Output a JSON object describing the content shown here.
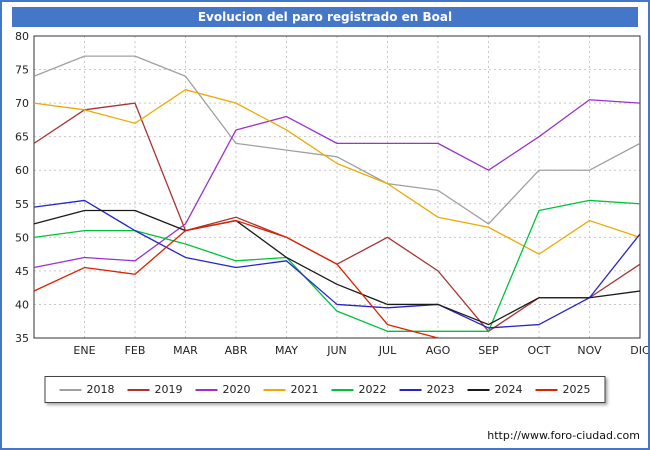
{
  "title": "Evolucion del paro registrado en Boal",
  "footer": {
    "url": "http://www.foro-ciudad.com"
  },
  "colors": {
    "frame": "#4577c8",
    "titlebar_bg": "#4577c8",
    "titlebar_text": "#ffffff",
    "grid": "#c8c8c8",
    "axis": "#333333"
  },
  "chart_data": {
    "type": "line",
    "title": "Evolucion del paro registrado en Boal",
    "x_labels": [
      "ENE",
      "FEB",
      "MAR",
      "ABR",
      "MAY",
      "JUN",
      "JUL",
      "AGO",
      "SEP",
      "OCT",
      "NOV",
      "DIC"
    ],
    "ylim": [
      35,
      80
    ],
    "ytick_step": 5,
    "grid": true,
    "legend_position": "bottom",
    "note_first_point": "each series starts at the left plot edge before the ENE column",
    "series": [
      {
        "name": "2018",
        "color": "#a0a0a0",
        "values": [
          74,
          77,
          77,
          74,
          64,
          63,
          62,
          58,
          57,
          52,
          60,
          60,
          64
        ]
      },
      {
        "name": "2019",
        "color": "#aa3333",
        "values": [
          64,
          69,
          70,
          51,
          53,
          50,
          46,
          50,
          45,
          36,
          41,
          41,
          46
        ]
      },
      {
        "name": "2020",
        "color": "#9933cc",
        "values": [
          45.5,
          47,
          46.5,
          52,
          66,
          68,
          64,
          64,
          64,
          60,
          65,
          70.5,
          70
        ]
      },
      {
        "name": "2021",
        "color": "#eeaa00",
        "values": [
          70,
          69,
          67,
          72,
          70,
          66,
          61,
          58,
          53,
          51.5,
          47.5,
          52.5,
          50
        ]
      },
      {
        "name": "2022",
        "color": "#00c23c",
        "values": [
          50,
          51,
          51,
          49,
          46.5,
          47,
          39,
          36,
          36,
          36,
          54,
          55.5,
          55
        ]
      },
      {
        "name": "2023",
        "color": "#2525cc",
        "values": [
          54.5,
          55.5,
          51,
          47,
          45.5,
          46.5,
          40,
          39.5,
          40,
          36.5,
          37,
          41,
          50.5
        ]
      },
      {
        "name": "2024",
        "color": "#1a1a1a",
        "values": [
          52,
          54,
          54,
          51,
          52.5,
          47,
          43,
          40,
          40,
          37,
          41,
          41,
          42
        ]
      },
      {
        "name": "2025",
        "color": "#dd2200",
        "values": [
          42,
          45.5,
          44.5,
          51,
          52.5,
          50,
          46,
          37,
          35
        ]
      }
    ]
  }
}
